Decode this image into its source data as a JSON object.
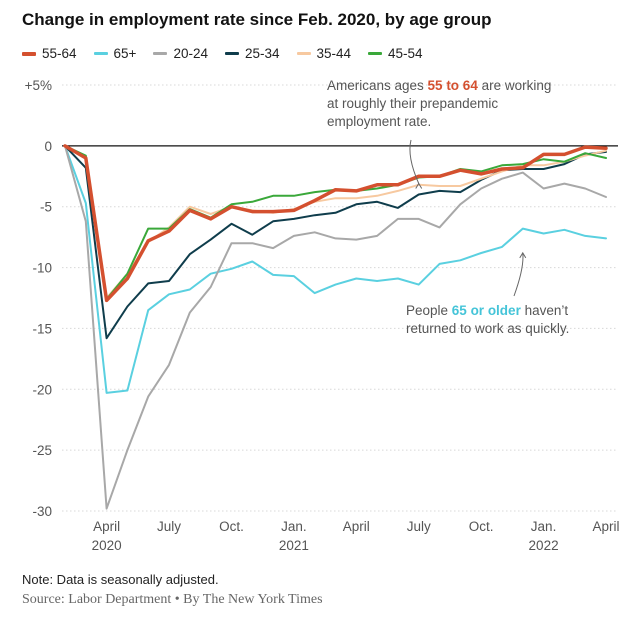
{
  "chart_data": {
    "type": "line",
    "title": "Change in employment rate since Feb. 2020, by age group",
    "ylim": [
      -30,
      5
    ],
    "yticks": [
      {
        "value": 5,
        "label": "+5%"
      },
      {
        "value": 0,
        "label": "0"
      },
      {
        "value": -5,
        "label": "-5"
      },
      {
        "value": -10,
        "label": "-10"
      },
      {
        "value": -15,
        "label": "-15"
      },
      {
        "value": -20,
        "label": "-20"
      },
      {
        "value": -25,
        "label": "-25"
      },
      {
        "value": -30,
        "label": "-30"
      }
    ],
    "xticks": [
      {
        "index": 2,
        "label": "April",
        "year": "2020"
      },
      {
        "index": 5,
        "label": "July",
        "year": ""
      },
      {
        "index": 8,
        "label": "Oct.",
        "year": ""
      },
      {
        "index": 11,
        "label": "Jan.",
        "year": "2021"
      },
      {
        "index": 14,
        "label": "April",
        "year": ""
      },
      {
        "index": 17,
        "label": "July",
        "year": ""
      },
      {
        "index": 20,
        "label": "Oct.",
        "year": ""
      },
      {
        "index": 23,
        "label": "Jan.",
        "year": "2022"
      },
      {
        "index": 26,
        "label": "April",
        "year": ""
      }
    ],
    "x": [
      "2020-02",
      "2020-03",
      "2020-04",
      "2020-05",
      "2020-06",
      "2020-07",
      "2020-08",
      "2020-09",
      "2020-10",
      "2020-11",
      "2020-12",
      "2021-01",
      "2021-02",
      "2021-03",
      "2021-04",
      "2021-05",
      "2021-06",
      "2021-07",
      "2021-08",
      "2021-09",
      "2021-10",
      "2021-11",
      "2021-12",
      "2022-01",
      "2022-02",
      "2022-03",
      "2022-04"
    ],
    "grid": "horizontal",
    "legend_position": "top-left",
    "series": [
      {
        "name": "65+",
        "color": "#5ad0e0",
        "width": 2,
        "values": [
          0,
          -4.7,
          -20.3,
          -20.1,
          -13.5,
          -12.2,
          -11.8,
          -10.5,
          -10.1,
          -9.5,
          -10.6,
          -10.7,
          -12.1,
          -11.4,
          -10.9,
          -11.1,
          -10.9,
          -11.4,
          -9.7,
          -9.4,
          -8.8,
          -8.3,
          -6.8,
          -7.2,
          -6.9,
          -7.4,
          -7.6
        ]
      },
      {
        "name": "20-24",
        "color": "#a8a8a8",
        "width": 2,
        "values": [
          0,
          -6.2,
          -29.8,
          -25.0,
          -20.6,
          -18.0,
          -13.7,
          -11.6,
          -8.0,
          -8.0,
          -8.4,
          -7.4,
          -7.1,
          -7.6,
          -7.7,
          -7.4,
          -6.0,
          -6.0,
          -6.7,
          -4.8,
          -3.5,
          -2.7,
          -2.2,
          -3.5,
          -3.1,
          -3.5,
          -4.2
        ]
      },
      {
        "name": "25-34",
        "color": "#0f3d4c",
        "width": 2,
        "values": [
          0,
          -1.8,
          -15.8,
          -13.2,
          -11.3,
          -11.1,
          -8.9,
          -7.7,
          -6.4,
          -7.3,
          -6.2,
          -6.0,
          -5.7,
          -5.5,
          -4.8,
          -4.6,
          -5.1,
          -4.0,
          -3.7,
          -3.8,
          -2.8,
          -2.0,
          -1.9,
          -1.9,
          -1.5,
          -0.7,
          -0.5
        ]
      },
      {
        "name": "35-44",
        "color": "#f7c9a0",
        "width": 2,
        "values": [
          0,
          -1.0,
          -12.5,
          -10.5,
          -7.9,
          -6.7,
          -5.0,
          -5.6,
          -5.0,
          -5.3,
          -5.5,
          -5.2,
          -4.6,
          -4.3,
          -4.3,
          -4.1,
          -3.7,
          -3.2,
          -3.3,
          -3.3,
          -2.7,
          -2.1,
          -1.6,
          -1.6,
          -1.3,
          -0.8,
          -0.4
        ]
      },
      {
        "name": "45-54",
        "color": "#3aa83a",
        "width": 2,
        "values": [
          0,
          -0.8,
          -12.6,
          -10.5,
          -6.8,
          -6.8,
          -5.2,
          -5.9,
          -4.8,
          -4.6,
          -4.1,
          -4.1,
          -3.8,
          -3.6,
          -3.7,
          -3.5,
          -3.2,
          -2.6,
          -2.5,
          -1.9,
          -2.1,
          -1.6,
          -1.5,
          -1.1,
          -1.3,
          -0.6,
          -1.0
        ]
      },
      {
        "name": "55-64",
        "color": "#d4502f",
        "width": 3.5,
        "values": [
          0,
          -1.0,
          -12.7,
          -10.9,
          -7.8,
          -7.0,
          -5.3,
          -6.0,
          -5.0,
          -5.4,
          -5.4,
          -5.3,
          -4.5,
          -3.6,
          -3.7,
          -3.2,
          -3.2,
          -2.5,
          -2.5,
          -2.0,
          -2.3,
          -1.9,
          -1.8,
          -0.7,
          -0.7,
          -0.1,
          -0.2
        ]
      }
    ],
    "legend_order": [
      "55-64",
      "65+",
      "20-24",
      "25-34",
      "35-44",
      "45-54"
    ],
    "annotations": [
      {
        "name": "annotation-55-64",
        "lines": [
          [
            {
              "t": "Americans ages "
            },
            {
              "t": "55 to 64",
              "hl": true
            },
            {
              "t": " are working"
            }
          ],
          [
            {
              "t": "at roughly their prepandemic"
            }
          ],
          [
            {
              "t": "employment rate."
            }
          ]
        ],
        "highlight_color": "#d4502f",
        "arrow_to": {
          "index": 17,
          "value": -2.6
        }
      },
      {
        "name": "annotation-65-plus",
        "lines": [
          [
            {
              "t": "People "
            },
            {
              "t": "65 or older",
              "hl": true
            },
            {
              "t": " haven’t"
            }
          ],
          [
            {
              "t": "returned to work as quickly."
            }
          ]
        ],
        "highlight_color": "#44c4d8",
        "arrow_to": {
          "index": 22,
          "value": -8.3
        }
      }
    ]
  },
  "note": "Note: Data is seasonally adjusted.",
  "source": "Source: Labor Department • By The New York Times",
  "colors": {
    "axis": "#121212",
    "grid": "#d8d8d8",
    "tick_label": "#555555",
    "annotation_text": "#555555",
    "arrow": "#666666"
  }
}
